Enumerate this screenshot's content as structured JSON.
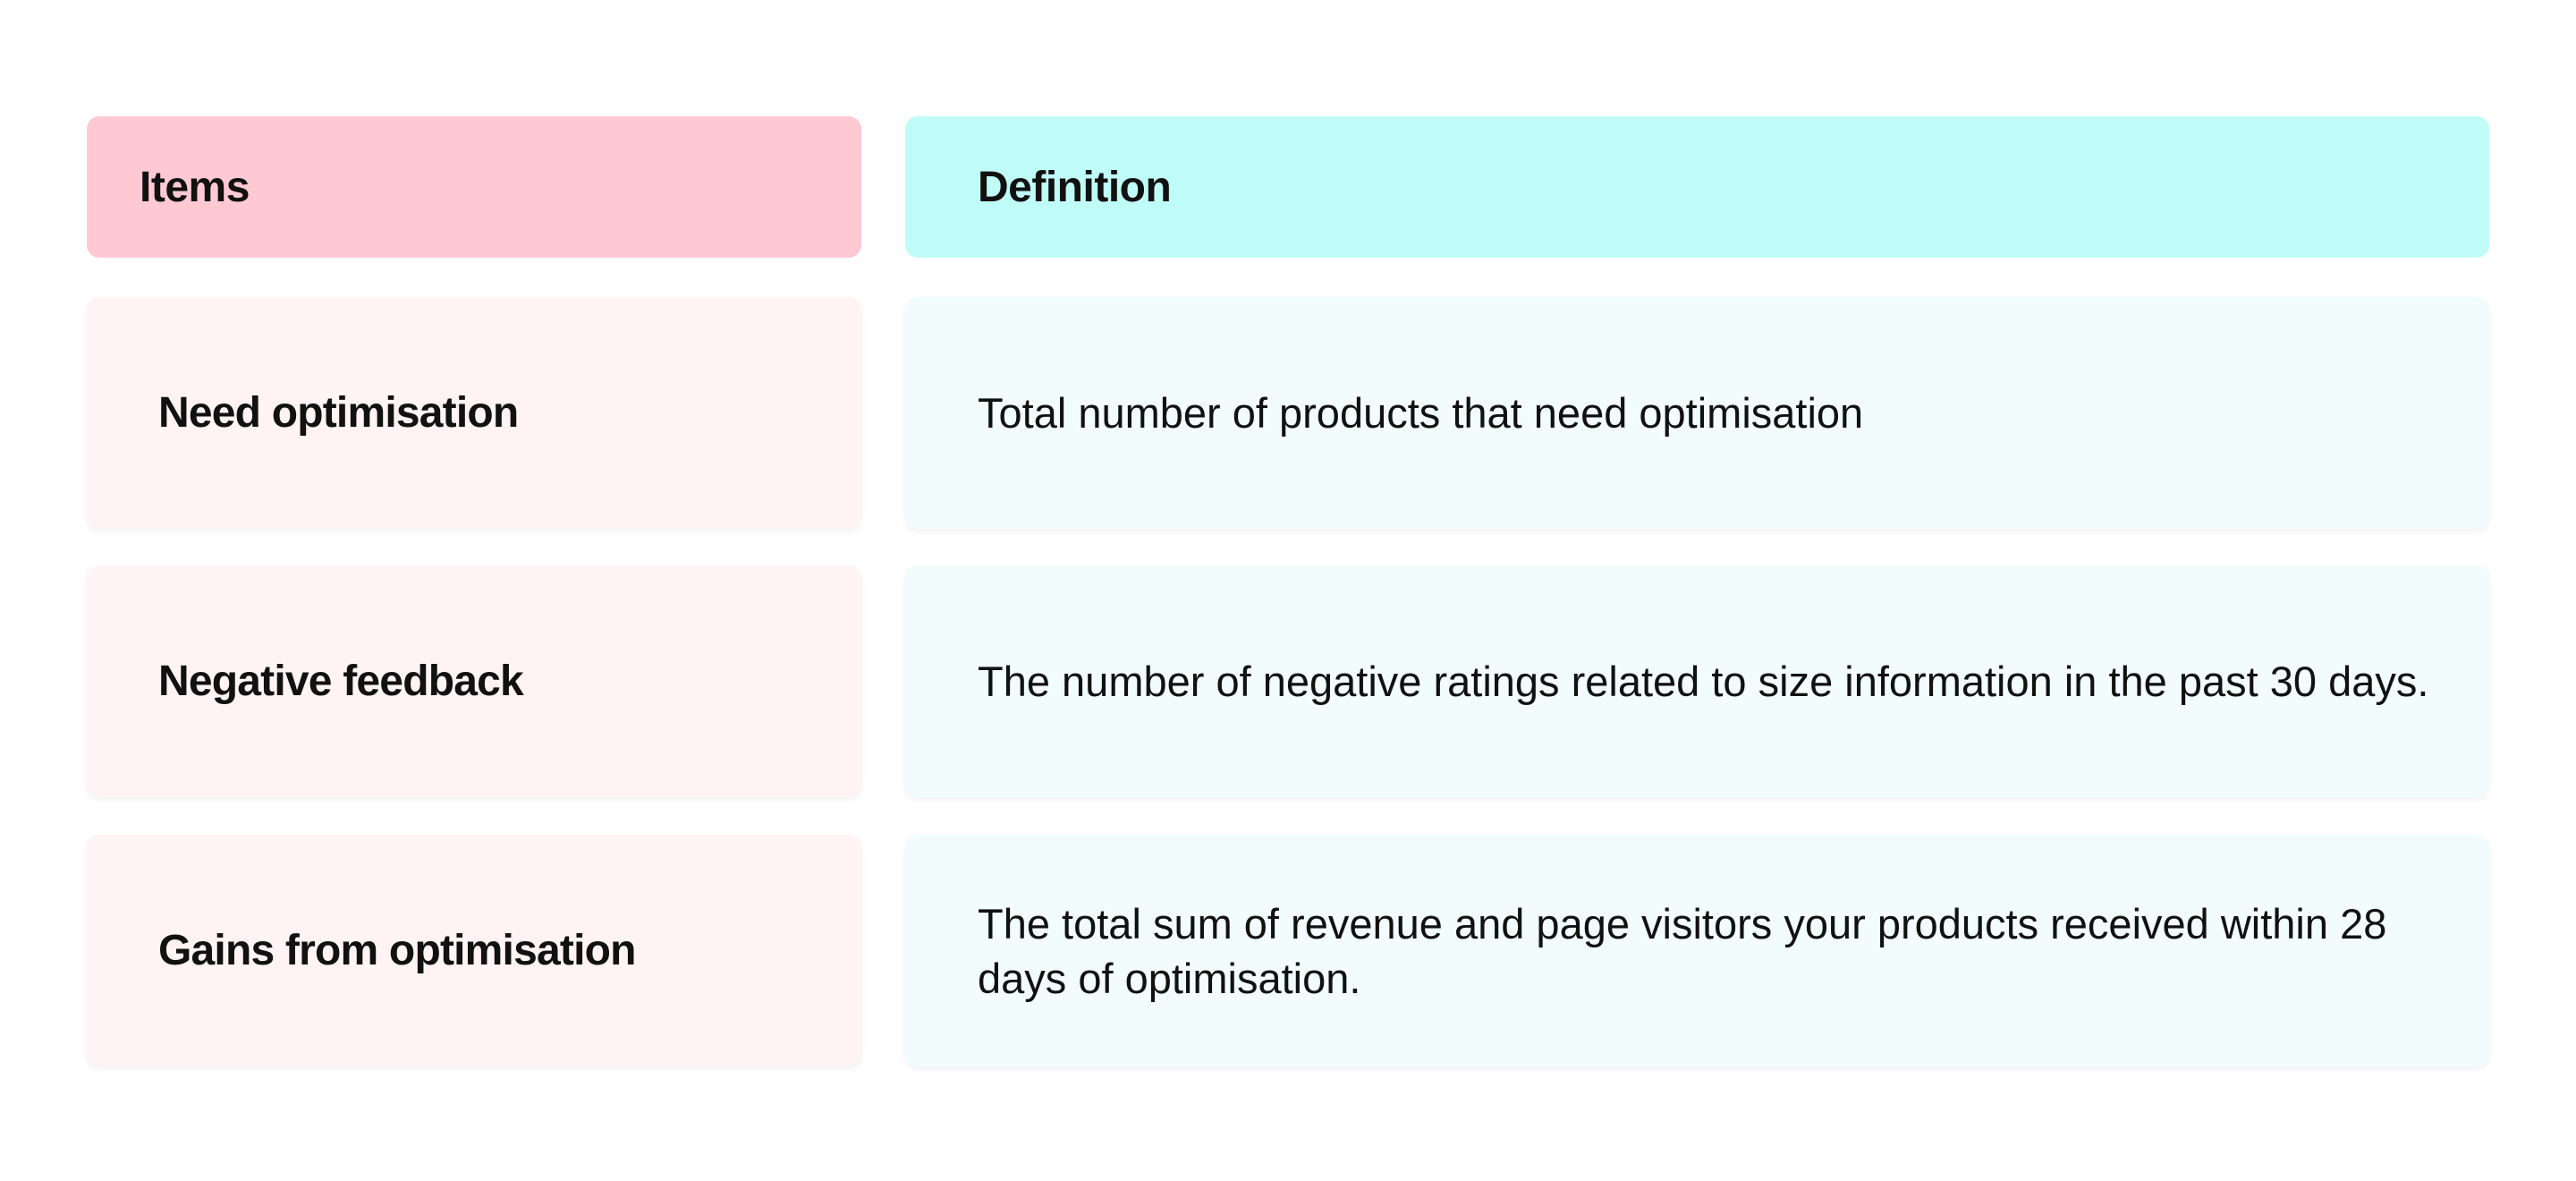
{
  "table": {
    "header": [
      "Items",
      "Definition"
    ],
    "rows": [
      [
        "Need optimisation",
        "Total number of products that need optimisation"
      ],
      [
        "Negative feedback",
        "The number of negative ratings related to size information in the past 30 days."
      ],
      [
        "Gains from optimisation",
        "The total sum of revenue and page visitors your products received within 28 days of optimisation."
      ]
    ]
  }
}
